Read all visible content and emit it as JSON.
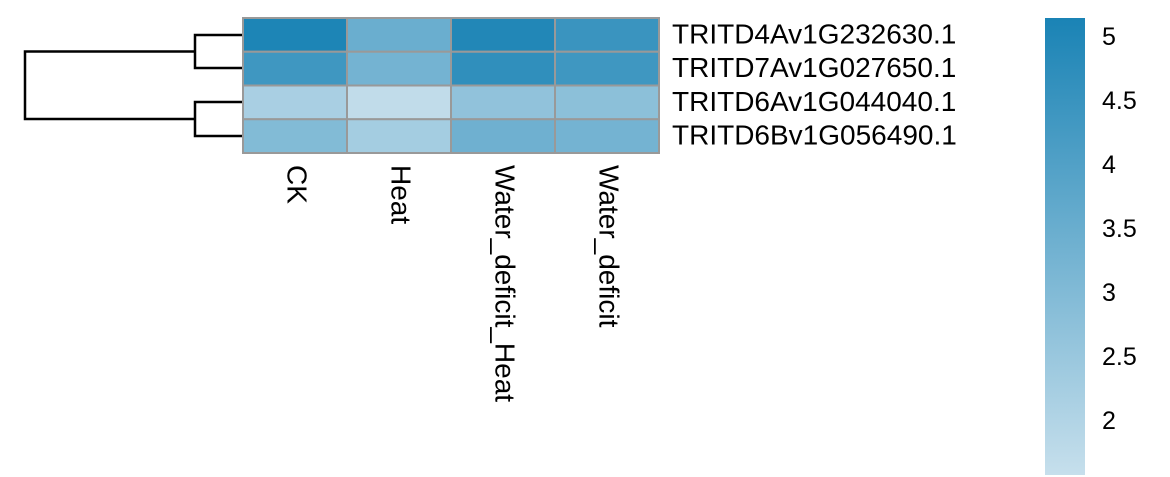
{
  "chart_data": {
    "type": "heatmap",
    "rows": [
      "TRITD4Av1G232630.1",
      "TRITD7Av1G027650.1",
      "TRITD6Av1G044040.1",
      "TRITD6Bv1G056490.1"
    ],
    "columns": [
      "CK",
      "Heat",
      "Water_deficit_Heat",
      "Water_deficit"
    ],
    "values": [
      [
        5.1,
        3.5,
        5.0,
        4.5
      ],
      [
        4.4,
        3.3,
        4.7,
        4.4
      ],
      [
        2.2,
        1.7,
        2.7,
        2.8
      ],
      [
        3.0,
        2.3,
        3.4,
        3.3
      ]
    ],
    "colorscale": [
      "#c6dfec",
      "#1a83b5"
    ],
    "zlim": [
      1.59,
      5.16
    ],
    "zticks": [
      2,
      2.5,
      3,
      3.5,
      4,
      4.5,
      5
    ],
    "border_color": "#999999"
  }
}
